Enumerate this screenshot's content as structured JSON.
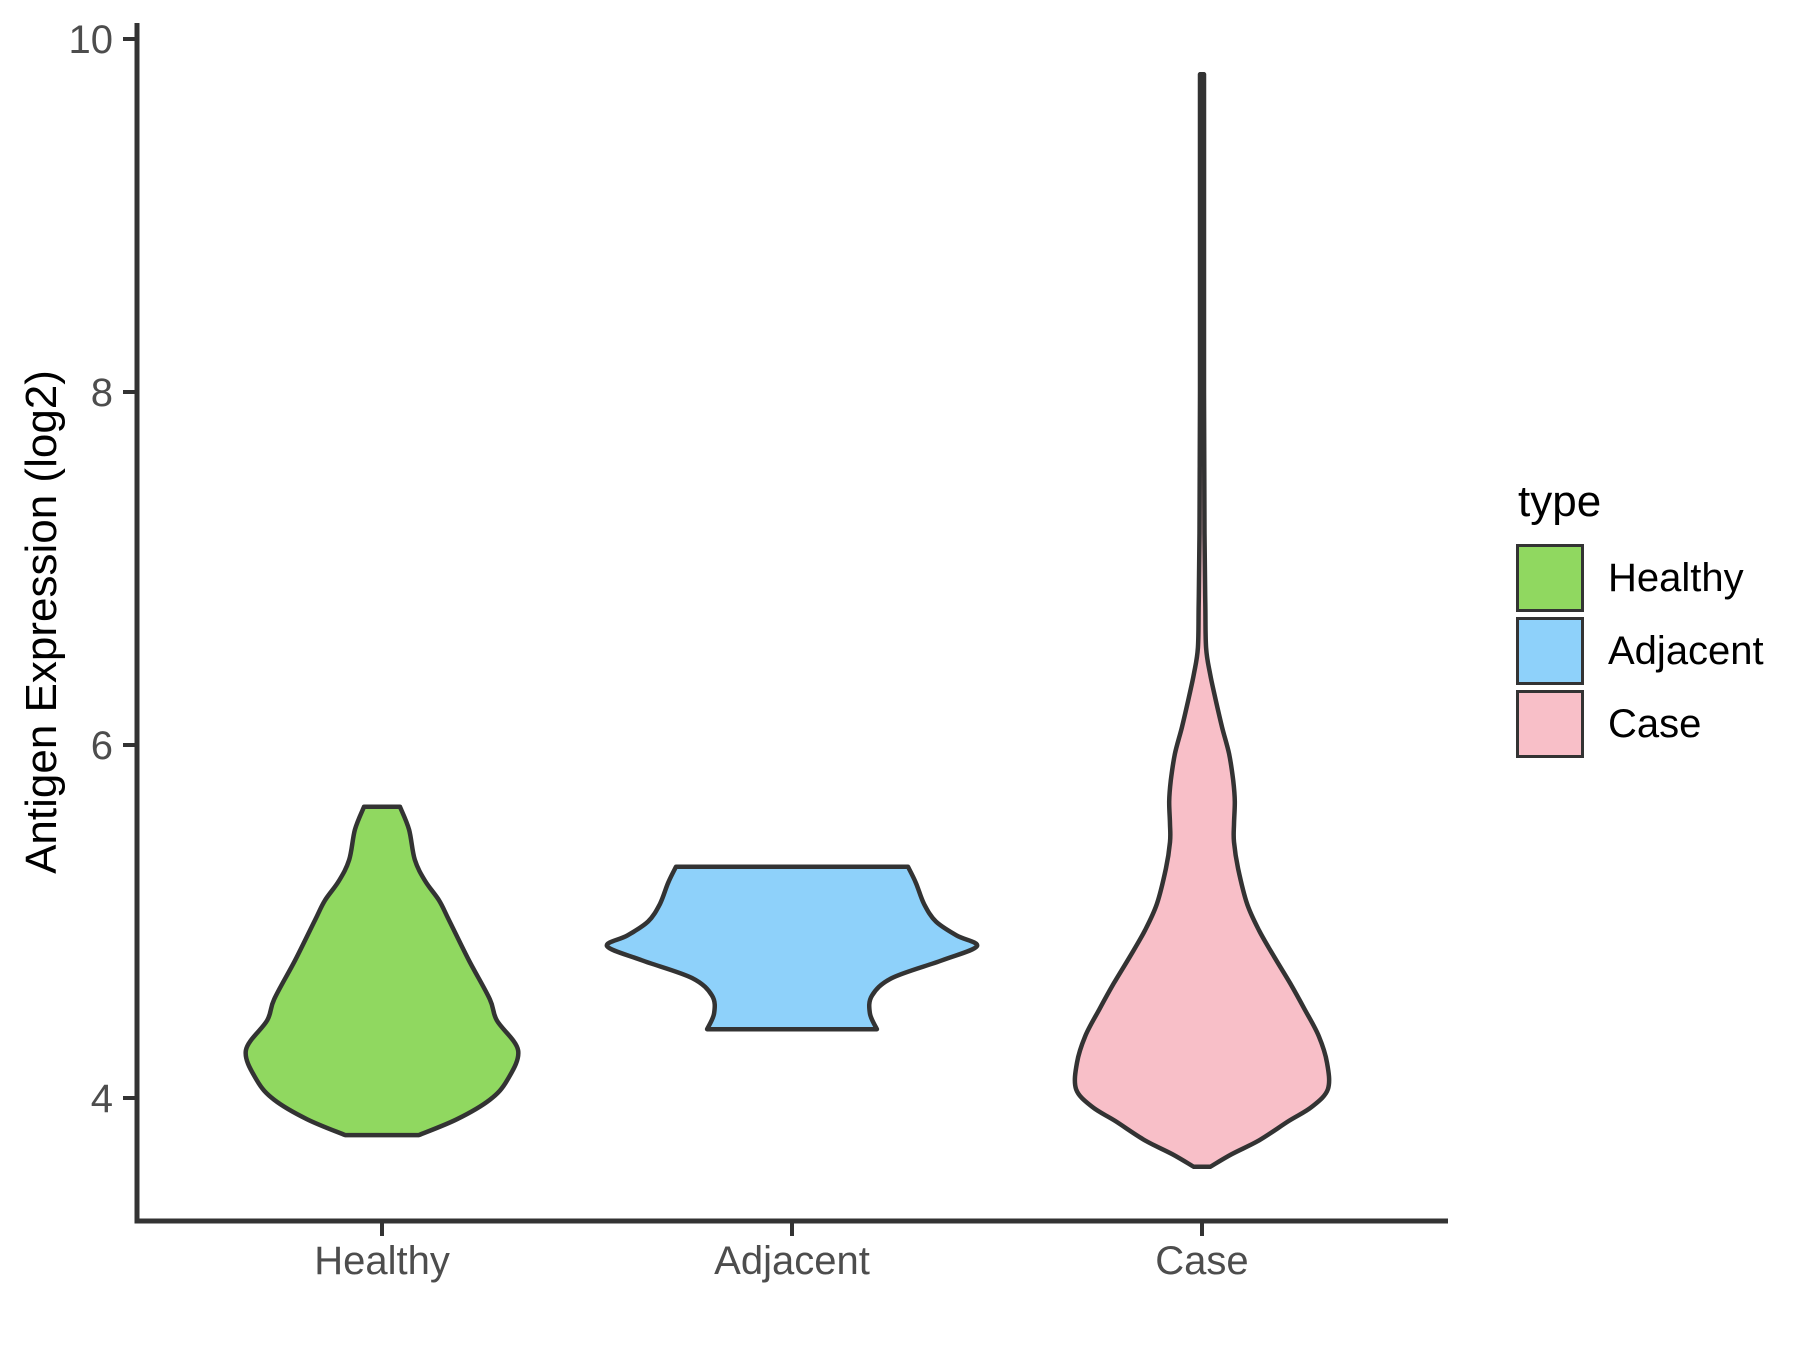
{
  "chart_data": {
    "type": "violin",
    "title": "",
    "xlabel": "",
    "ylabel": "Antigen Expression (log2)",
    "categories": [
      "Healthy",
      "Adjacent",
      "Case"
    ],
    "y_ticks": [
      4,
      6,
      8,
      10
    ],
    "ylim": [
      3.3,
      10.1
    ],
    "grid": "off",
    "colors": {
      "axis_line": "#333333",
      "tick_text": "#4D4D4D",
      "title_text": "#000000",
      "violin_outline": "#333333",
      "background": "#FFFFFF"
    },
    "legend": {
      "title": "type",
      "position": "right",
      "entries": [
        {
          "label": "Healthy",
          "color": "#90D860"
        },
        {
          "label": "Adjacent",
          "color": "#8ED1FA"
        },
        {
          "label": "Case",
          "color": "#F8BFC8"
        }
      ]
    },
    "series": [
      {
        "name": "Healthy",
        "fill": "#90D860",
        "summary": {
          "min": 3.79,
          "max": 5.65,
          "peak_density_at": 4.27
        },
        "profile": [
          [
            5.65,
            0.044
          ],
          [
            5.52,
            0.066
          ],
          [
            5.35,
            0.08
          ],
          [
            5.23,
            0.105
          ],
          [
            5.12,
            0.139
          ],
          [
            5.01,
            0.163
          ],
          [
            4.78,
            0.212
          ],
          [
            4.56,
            0.263
          ],
          [
            4.44,
            0.28
          ],
          [
            4.27,
            0.332
          ],
          [
            4.1,
            0.305
          ],
          [
            3.99,
            0.263
          ],
          [
            3.88,
            0.183
          ],
          [
            3.79,
            0.09
          ]
        ]
      },
      {
        "name": "Adjacent",
        "fill": "#8ED1FA",
        "summary": {
          "min": 4.39,
          "max": 5.31,
          "peak_density_at": 4.86
        },
        "profile": [
          [
            5.31,
            0.283
          ],
          [
            5.22,
            0.302
          ],
          [
            5.1,
            0.322
          ],
          [
            5.0,
            0.351
          ],
          [
            4.92,
            0.402
          ],
          [
            4.86,
            0.451
          ],
          [
            4.78,
            0.366
          ],
          [
            4.68,
            0.244
          ],
          [
            4.58,
            0.195
          ],
          [
            4.48,
            0.19
          ],
          [
            4.39,
            0.207
          ]
        ]
      },
      {
        "name": "Case",
        "fill": "#F8BFC8",
        "summary": {
          "min": 3.61,
          "max": 9.8,
          "peak_density_at": 4.12
        },
        "profile": [
          [
            9.8,
            0.005
          ],
          [
            9.0,
            0.005
          ],
          [
            8.0,
            0.005
          ],
          [
            7.2,
            0.006
          ],
          [
            6.8,
            0.008
          ],
          [
            6.55,
            0.01
          ],
          [
            6.4,
            0.02
          ],
          [
            6.25,
            0.034
          ],
          [
            6.1,
            0.049
          ],
          [
            5.95,
            0.066
          ],
          [
            5.8,
            0.076
          ],
          [
            5.68,
            0.08
          ],
          [
            5.55,
            0.078
          ],
          [
            5.45,
            0.078
          ],
          [
            5.3,
            0.088
          ],
          [
            5.1,
            0.11
          ],
          [
            4.95,
            0.139
          ],
          [
            4.8,
            0.176
          ],
          [
            4.65,
            0.215
          ],
          [
            4.5,
            0.251
          ],
          [
            4.35,
            0.285
          ],
          [
            4.2,
            0.305
          ],
          [
            4.05,
            0.307
          ],
          [
            3.95,
            0.268
          ],
          [
            3.87,
            0.212
          ],
          [
            3.76,
            0.139
          ],
          [
            3.68,
            0.071
          ],
          [
            3.61,
            0.02
          ]
        ]
      }
    ]
  }
}
